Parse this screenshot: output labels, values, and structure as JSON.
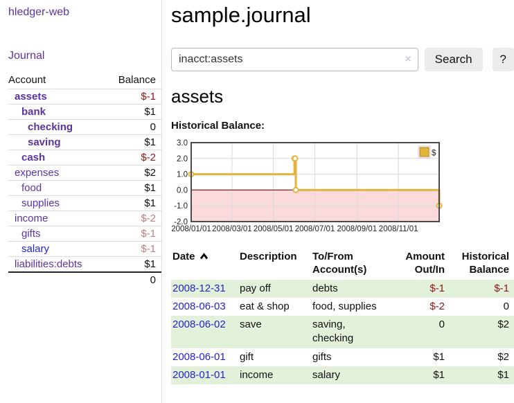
{
  "app": {
    "brand": "hledger-web"
  },
  "sidebar": {
    "journal_link": "Journal",
    "accounts": {
      "col_account": "Account",
      "col_balance": "Balance",
      "rows": [
        {
          "name": "assets",
          "depth": 1,
          "bold": true,
          "blue": false,
          "balance": "$-1",
          "bal_style": "neg"
        },
        {
          "name": "bank",
          "depth": 2,
          "bold": true,
          "blue": false,
          "balance": "$1",
          "bal_style": ""
        },
        {
          "name": "checking",
          "depth": 3,
          "bold": true,
          "blue": false,
          "balance": "0",
          "bal_style": ""
        },
        {
          "name": "saving",
          "depth": 3,
          "bold": true,
          "blue": false,
          "balance": "$1",
          "bal_style": ""
        },
        {
          "name": "cash",
          "depth": 2,
          "bold": true,
          "blue": false,
          "balance": "$-2",
          "bal_style": "neg"
        },
        {
          "name": "expenses",
          "depth": 1,
          "bold": false,
          "blue": false,
          "balance": "$2",
          "bal_style": ""
        },
        {
          "name": "food",
          "depth": 2,
          "bold": false,
          "blue": false,
          "balance": "$1",
          "bal_style": ""
        },
        {
          "name": "supplies",
          "depth": 2,
          "bold": false,
          "blue": false,
          "balance": "$1",
          "bal_style": ""
        },
        {
          "name": "income",
          "depth": 1,
          "bold": false,
          "blue": false,
          "balance": "$-2",
          "bal_style": "soft"
        },
        {
          "name": "gifts",
          "depth": 2,
          "bold": false,
          "blue": false,
          "balance": "$-1",
          "bal_style": "soft"
        },
        {
          "name": "salary",
          "depth": 2,
          "bold": false,
          "blue": true,
          "balance": "$-1",
          "bal_style": "soft"
        },
        {
          "name": "liabilities:debts",
          "depth": 1,
          "bold": false,
          "blue": false,
          "balance": "$1",
          "bal_style": ""
        }
      ],
      "total": "0"
    }
  },
  "main": {
    "title": "sample.journal",
    "search": {
      "value": "inacct:assets",
      "clear_icon": "×",
      "search_button": "Search",
      "help_button": "?"
    },
    "account_heading": "assets",
    "section_label": "Historical Balance:"
  },
  "chart_data": {
    "type": "line",
    "step": true,
    "title": "Historical Balance",
    "series": [
      {
        "name": "$",
        "points": [
          {
            "x": "2008-01-01",
            "y": 1
          },
          {
            "x": "2008-06-01",
            "y": 2
          },
          {
            "x": "2008-06-02",
            "y": 2
          },
          {
            "x": "2008-06-03",
            "y": 0
          },
          {
            "x": "2008-12-31",
            "y": -1
          }
        ]
      }
    ],
    "x_tick_labels": [
      "2008/01/01",
      "2008/03/01",
      "2008/05/01",
      "2008/07/01",
      "2008/09/01",
      "2008/11/01"
    ],
    "y_tick_labels": [
      "3.0",
      "2.0",
      "1.0",
      "0.0",
      "-1.0",
      "-2.0"
    ],
    "xlim": [
      "2008-01-01",
      "2008-12-31"
    ],
    "ylim": [
      -2,
      3
    ],
    "grid": true,
    "negative_region": true,
    "legend": {
      "position": "top-right",
      "entries": [
        {
          "label": "$",
          "color": "#e3b33d"
        }
      ]
    },
    "line_color": "#e3b33d",
    "negative_region_color": "#fadada",
    "zero_line_color": "#7b2020"
  },
  "register": {
    "headers": {
      "date": "Date",
      "description": "Description",
      "tofrom": "To/From\nAccount(s)",
      "amount": "Amount\nOut/In",
      "balance": "Historical\nBalance"
    },
    "rows": [
      {
        "date": "2008-12-31",
        "description": "pay off",
        "accounts": "debts",
        "amount": "$-1",
        "amount_neg": true,
        "balance": "$-1",
        "balance_neg": true
      },
      {
        "date": "2008-06-03",
        "description": "eat & shop",
        "accounts": "food, supplies",
        "amount": "$-2",
        "amount_neg": true,
        "balance": "0",
        "balance_neg": false
      },
      {
        "date": "2008-06-02",
        "description": "save",
        "accounts": "saving, checking",
        "amount": "0",
        "amount_neg": false,
        "balance": "$2",
        "balance_neg": false
      },
      {
        "date": "2008-06-01",
        "description": "gift",
        "accounts": "gifts",
        "amount": "$1",
        "amount_neg": false,
        "balance": "$2",
        "balance_neg": false
      },
      {
        "date": "2008-01-01",
        "description": "income",
        "accounts": "salary",
        "amount": "$1",
        "amount_neg": false,
        "balance": "$1",
        "balance_neg": false
      }
    ]
  },
  "colors": {
    "link_purple": "#5b33a1",
    "link_blue": "#2323cc",
    "negative_strong": "#8e1515",
    "negative_soft": "#bd7f7f",
    "row_green": "#e3f0da",
    "chart_line_gold": "#e3b33d",
    "chart_negative_region": "#fadada",
    "chart_zero_line": "#7b2020"
  }
}
